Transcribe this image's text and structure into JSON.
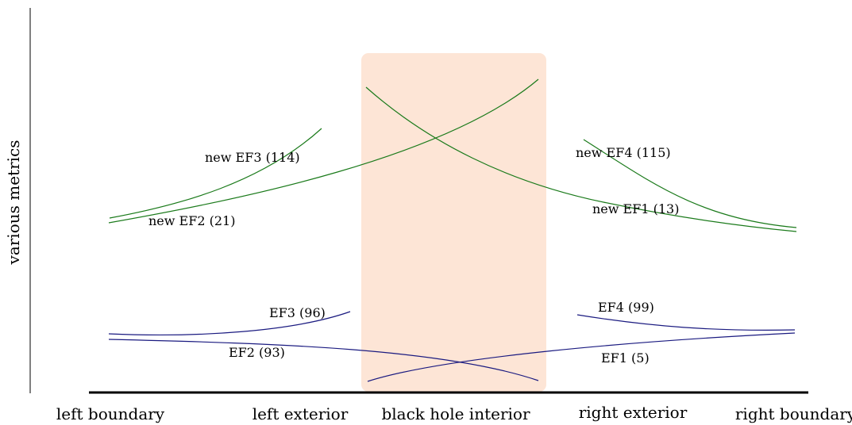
{
  "ylabel": "various metrics",
  "regions": [
    "left boundary",
    "left exterior",
    "black hole interior",
    "right exterior",
    "right boundary"
  ],
  "colors": {
    "interior_fill": "#fde5d6",
    "new_curve": "#1a7a1a",
    "old_curve": "#1a1a80",
    "axis": "#000000"
  },
  "curves": [
    {
      "id": "new-ef3",
      "label": "new EF3 (114)",
      "group": "new",
      "region": "left boundary to left exterior",
      "trend": "rising"
    },
    {
      "id": "new-ef2",
      "label": "new EF2 (21)",
      "group": "new",
      "region": "left boundary to black hole interior",
      "trend": "rising"
    },
    {
      "id": "new-ef4",
      "label": "new EF4 (115)",
      "group": "new",
      "region": "right exterior to right boundary",
      "trend": "falling"
    },
    {
      "id": "new-ef1",
      "label": "new EF1 (13)",
      "group": "new",
      "region": "black hole interior to right boundary",
      "trend": "falling"
    },
    {
      "id": "ef3",
      "label": "EF3 (96)",
      "group": "old",
      "region": "left boundary to left exterior",
      "trend": "rising"
    },
    {
      "id": "ef2",
      "label": "EF2 (93)",
      "group": "old",
      "region": "left boundary to black hole interior",
      "trend": "falling"
    },
    {
      "id": "ef4",
      "label": "EF4 (99)",
      "group": "old",
      "region": "right exterior to right boundary",
      "trend": "falling"
    },
    {
      "id": "ef1",
      "label": "EF1 (5)",
      "group": "old",
      "region": "black hole interior to right boundary",
      "trend": "rising"
    }
  ]
}
